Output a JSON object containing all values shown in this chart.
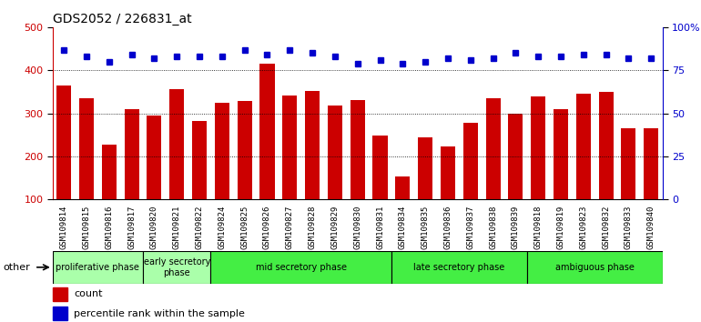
{
  "title": "GDS2052 / 226831_at",
  "samples": [
    "GSM109814",
    "GSM109815",
    "GSM109816",
    "GSM109817",
    "GSM109820",
    "GSM109821",
    "GSM109822",
    "GSM109824",
    "GSM109825",
    "GSM109826",
    "GSM109827",
    "GSM109828",
    "GSM109829",
    "GSM109830",
    "GSM109831",
    "GSM109834",
    "GSM109835",
    "GSM109836",
    "GSM109837",
    "GSM109838",
    "GSM109839",
    "GSM109818",
    "GSM109819",
    "GSM109823",
    "GSM109832",
    "GSM109833",
    "GSM109840"
  ],
  "counts": [
    365,
    336,
    228,
    311,
    295,
    357,
    282,
    324,
    329,
    416,
    342,
    352,
    319,
    331,
    248,
    154,
    244,
    223,
    278,
    335,
    299,
    340,
    311,
    347,
    350,
    265,
    265
  ],
  "percentiles": [
    87,
    83,
    80,
    84,
    82,
    83,
    83,
    83,
    87,
    84,
    87,
    85,
    83,
    79,
    81,
    79,
    80,
    82,
    81,
    82,
    85,
    83,
    83,
    84,
    84,
    82,
    82
  ],
  "bar_color": "#cc0000",
  "dot_color": "#0000cc",
  "ylim_left": [
    100,
    500
  ],
  "ylim_right": [
    0,
    100
  ],
  "yticks_left": [
    100,
    200,
    300,
    400,
    500
  ],
  "yticks_right": [
    0,
    25,
    50,
    75,
    100
  ],
  "yticklabels_right": [
    "0",
    "25",
    "50",
    "75",
    "100%"
  ],
  "grid_ticks": [
    200,
    300,
    400
  ],
  "phases": [
    {
      "label": "proliferative phase",
      "start": 0,
      "end": 4,
      "color": "#aaffaa"
    },
    {
      "label": "early secretory\nphase",
      "start": 4,
      "end": 7,
      "color": "#aaffaa"
    },
    {
      "label": "mid secretory phase",
      "start": 7,
      "end": 15,
      "color": "#44ee44"
    },
    {
      "label": "late secretory phase",
      "start": 15,
      "end": 21,
      "color": "#44ee44"
    },
    {
      "label": "ambiguous phase",
      "start": 21,
      "end": 27,
      "color": "#44ee44"
    }
  ],
  "legend_count_label": "count",
  "legend_pct_label": "percentile rank within the sample",
  "other_label": "other",
  "ticklabel_color_left": "#cc0000",
  "ticklabel_color_right": "#0000cc",
  "bg_color": "#ffffff",
  "tick_bg_color": "#cccccc"
}
